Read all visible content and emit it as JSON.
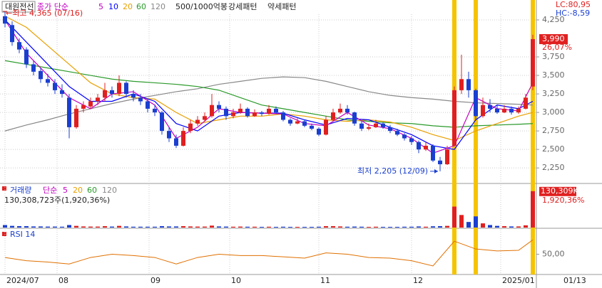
{
  "chart_data": [
    {
      "type": "candlestick",
      "title": "대원전선",
      "legend_prefix": "종가 단순",
      "patterns": [
        "500/1000억봉",
        "강세패턴",
        "약세패턴"
      ],
      "up_color": "#e02020",
      "down_color": "#1a3fd0",
      "candles": [
        [
          4300,
          4365,
          4150,
          4200
        ],
        [
          4180,
          4230,
          3900,
          3950
        ],
        [
          3950,
          4000,
          3800,
          3850
        ],
        [
          3850,
          3880,
          3600,
          3650
        ],
        [
          3650,
          3700,
          3500,
          3550
        ],
        [
          3560,
          3600,
          3400,
          3450
        ],
        [
          3450,
          3520,
          3350,
          3400
        ],
        [
          3400,
          3450,
          3250,
          3300
        ],
        [
          3300,
          3380,
          3200,
          3250
        ],
        [
          3200,
          3250,
          2650,
          2800
        ],
        [
          2800,
          3100,
          2780,
          3050
        ],
        [
          3050,
          3150,
          3000,
          3100
        ],
        [
          3080,
          3200,
          3050,
          3150
        ],
        [
          3150,
          3250,
          3100,
          3200
        ],
        [
          3200,
          3400,
          3150,
          3300
        ],
        [
          3300,
          3350,
          3200,
          3250
        ],
        [
          3250,
          3500,
          3220,
          3400
        ],
        [
          3400,
          3420,
          3200,
          3250
        ],
        [
          3250,
          3300,
          3150,
          3200
        ],
        [
          3200,
          3250,
          3100,
          3150
        ],
        [
          3150,
          3180,
          3000,
          3050
        ],
        [
          3050,
          3100,
          2950,
          3000
        ],
        [
          3000,
          3020,
          2700,
          2750
        ],
        [
          2750,
          2800,
          2600,
          2650
        ],
        [
          2650,
          2700,
          2520,
          2550
        ],
        [
          2550,
          2800,
          2540,
          2750
        ],
        [
          2750,
          2900,
          2720,
          2850
        ],
        [
          2850,
          2950,
          2820,
          2900
        ],
        [
          2900,
          3000,
          2880,
          2950
        ],
        [
          2950,
          3250,
          2930,
          3100
        ],
        [
          3100,
          3150,
          3000,
          3050
        ],
        [
          3050,
          3080,
          2900,
          2950
        ],
        [
          2950,
          3050,
          2920,
          3000
        ],
        [
          3000,
          3120,
          2980,
          3050
        ],
        [
          3050,
          3070,
          2930,
          2950
        ],
        [
          2950,
          3040,
          2940,
          3000
        ],
        [
          3000,
          3020,
          2950,
          2980
        ],
        [
          2980,
          3100,
          2970,
          3050
        ],
        [
          3050,
          3080,
          2980,
          3000
        ],
        [
          3000,
          3020,
          2880,
          2900
        ],
        [
          2900,
          2920,
          2820,
          2850
        ],
        [
          2850,
          2920,
          2840,
          2880
        ],
        [
          2880,
          2900,
          2800,
          2820
        ],
        [
          2820,
          2850,
          2760,
          2780
        ],
        [
          2780,
          2800,
          2680,
          2700
        ],
        [
          2700,
          2950,
          2690,
          2900
        ],
        [
          2900,
          3050,
          2880,
          3000
        ],
        [
          3000,
          3120,
          2980,
          3050
        ],
        [
          3050,
          3100,
          2970,
          3000
        ],
        [
          3000,
          3010,
          2820,
          2850
        ],
        [
          2850,
          2880,
          2750,
          2780
        ],
        [
          2780,
          2850,
          2760,
          2800
        ],
        [
          2800,
          2900,
          2790,
          2850
        ],
        [
          2850,
          2870,
          2780,
          2800
        ],
        [
          2800,
          2830,
          2720,
          2750
        ],
        [
          2750,
          2780,
          2680,
          2700
        ],
        [
          2700,
          2720,
          2620,
          2650
        ],
        [
          2650,
          2680,
          2560,
          2600
        ],
        [
          2600,
          2620,
          2450,
          2500
        ],
        [
          2500,
          2600,
          2480,
          2550
        ],
        [
          2550,
          2570,
          2330,
          2350
        ],
        [
          2350,
          2400,
          2205,
          2300
        ],
        [
          2300,
          2550,
          2290,
          2500
        ],
        [
          2550,
          3350,
          2540,
          3300
        ],
        [
          3300,
          3780,
          3250,
          3450
        ],
        [
          3450,
          3550,
          3200,
          3300
        ],
        [
          3300,
          3320,
          2900,
          2950
        ],
        [
          2950,
          3200,
          2930,
          3100
        ],
        [
          3100,
          3180,
          3000,
          3050
        ],
        [
          3050,
          3100,
          2980,
          3000
        ],
        [
          3000,
          3100,
          2990,
          3050
        ],
        [
          3050,
          3080,
          2970,
          3000
        ],
        [
          3000,
          3080,
          2980,
          3050
        ],
        [
          3050,
          3250,
          3040,
          3200
        ],
        [
          3350,
          4050,
          3300,
          3990
        ]
      ],
      "series": [
        {
          "name": "5",
          "color": "#c000c0",
          "x": [
            0,
            3,
            6,
            9,
            12,
            15,
            18,
            21,
            24,
            27,
            30,
            33,
            36,
            39,
            42,
            45,
            48,
            51,
            54,
            57,
            60,
            63,
            66,
            69,
            72,
            74
          ],
          "values": [
            4250,
            3800,
            3500,
            3200,
            3050,
            3250,
            3280,
            3100,
            2650,
            2800,
            3050,
            3000,
            2990,
            2980,
            2850,
            2820,
            3000,
            2830,
            2780,
            2650,
            2450,
            2550,
            3200,
            3050,
            3020,
            3400
          ]
        },
        {
          "name": "10",
          "color": "#0000ff",
          "x": [
            0,
            3,
            6,
            9,
            12,
            15,
            18,
            21,
            24,
            27,
            30,
            33,
            36,
            39,
            42,
            45,
            48,
            51,
            54,
            57,
            60,
            63,
            66,
            69,
            72,
            74
          ],
          "values": [
            4250,
            3950,
            3650,
            3350,
            3150,
            3150,
            3250,
            3150,
            2850,
            2750,
            2950,
            3000,
            2990,
            2990,
            2900,
            2830,
            2920,
            2900,
            2800,
            2700,
            2550,
            2500,
            2900,
            3100,
            3050,
            3150
          ]
        },
        {
          "name": "20",
          "color": "#e8a000",
          "x": [
            0,
            3,
            6,
            9,
            12,
            15,
            18,
            21,
            24,
            27,
            30,
            33,
            36,
            39,
            42,
            45,
            48,
            51,
            54,
            57,
            60,
            63,
            66,
            69,
            72,
            74
          ],
          "values": [
            4300,
            4150,
            3900,
            3650,
            3400,
            3250,
            3200,
            3180,
            3000,
            2850,
            2900,
            2950,
            2950,
            2980,
            2950,
            2900,
            2880,
            2900,
            2870,
            2800,
            2700,
            2620,
            2750,
            2850,
            2950,
            3000
          ]
        },
        {
          "name": "60",
          "color": "#2a9a2a",
          "x": [
            0,
            3,
            6,
            9,
            12,
            15,
            18,
            21,
            24,
            27,
            30,
            33,
            36,
            39,
            42,
            45,
            48,
            51,
            54,
            57,
            60,
            63,
            66,
            69,
            72,
            74
          ],
          "values": [
            3700,
            3650,
            3600,
            3550,
            3500,
            3450,
            3420,
            3400,
            3380,
            3350,
            3300,
            3200,
            3100,
            3050,
            3000,
            2950,
            2900,
            2880,
            2860,
            2850,
            2820,
            2800,
            2820,
            2830,
            2840,
            2850
          ]
        },
        {
          "name": "120",
          "color": "#888888",
          "x": [
            0,
            3,
            6,
            9,
            12,
            15,
            18,
            21,
            24,
            27,
            30,
            33,
            36,
            39,
            42,
            45,
            48,
            51,
            54,
            57,
            60,
            63,
            66,
            69,
            72,
            74
          ],
          "values": [
            2750,
            2830,
            2900,
            2980,
            3050,
            3120,
            3180,
            3230,
            3280,
            3320,
            3380,
            3420,
            3460,
            3480,
            3470,
            3420,
            3350,
            3280,
            3230,
            3200,
            3180,
            3150,
            3130,
            3120,
            3110,
            3100
          ]
        }
      ],
      "ylim": [
        2050,
        4365
      ],
      "yticks": [
        {
          "value": 4250,
          "label": "4,250"
        },
        {
          "value": 3750,
          "label": "3,750"
        },
        {
          "value": 3500,
          "label": "3,500"
        },
        {
          "value": 3250,
          "label": "3,250"
        },
        {
          "value": 3000,
          "label": "3,000"
        },
        {
          "value": 2750,
          "label": "2,750"
        },
        {
          "value": 2500,
          "label": "2,500"
        },
        {
          "value": 2250,
          "label": "2,250"
        }
      ],
      "current_price": {
        "value": 3990,
        "label": "3,990"
      },
      "change": {
        "value": 26.07,
        "label": "26,07%"
      },
      "lc": "LC:80,95",
      "hc": "HC:-8,59",
      "high": {
        "index": 0,
        "value": 4365,
        "label": "←최고 4,365 (07/16)"
      },
      "low": {
        "index": 61,
        "value": 2205,
        "label": "최저 2,205 (12/09)"
      },
      "highlights": [
        63,
        66,
        74
      ],
      "highlight_color": "#f5c400",
      "xticks": [
        {
          "value": 0,
          "label": "2024/07"
        },
        {
          "value": 7.3,
          "label": "08"
        },
        {
          "value": 20.2,
          "label": "09"
        },
        {
          "value": 31.5,
          "label": "10"
        },
        {
          "value": 44,
          "label": "11"
        },
        {
          "value": 57,
          "label": "12"
        },
        {
          "value": 69.5,
          "label": "2025/01"
        }
      ],
      "x_end_label": "01/13",
      "grid": true
    },
    {
      "type": "bar",
      "title": "거래량",
      "legend_prefix": "단순",
      "legend_names": [
        {
          "name": "5",
          "color": "#c000c0"
        },
        {
          "name": "20",
          "color": "#e8a000"
        },
        {
          "name": "60",
          "color": "#2a9a2a"
        },
        {
          "name": "120",
          "color": "#888888"
        }
      ],
      "summary": "130,308,723주(1,920,36%)",
      "values": [
        9000,
        6000,
        5000,
        5000,
        4000,
        4000,
        3500,
        3500,
        3000,
        9000,
        6000,
        4000,
        3500,
        3500,
        5000,
        3500,
        6000,
        4000,
        3000,
        3000,
        3000,
        3000,
        5000,
        4000,
        4000,
        5000,
        4000,
        3500,
        3500,
        7000,
        4000,
        3500,
        3000,
        3500,
        3000,
        3000,
        2500,
        3000,
        2500,
        3000,
        2500,
        2500,
        2500,
        2500,
        3000,
        5000,
        5000,
        4000,
        3000,
        3500,
        3000,
        2500,
        3000,
        2500,
        2500,
        2500,
        3000,
        3000,
        4000,
        3000,
        4500,
        5000,
        6000,
        75000,
        45000,
        20000,
        40000,
        15000,
        9000,
        6000,
        5000,
        4000,
        4000,
        8000,
        130309
      ],
      "ylim": [
        0,
        140000
      ],
      "current_volume": {
        "value": 130309,
        "label": "130,309K"
      },
      "volume_change": {
        "value": 1920.36,
        "label": "1,920,36%"
      }
    },
    {
      "type": "line",
      "title": "RSI 14",
      "color": "#e07000",
      "x": [
        0,
        3,
        6,
        9,
        12,
        15,
        18,
        21,
        24,
        27,
        30,
        33,
        36,
        39,
        42,
        45,
        48,
        51,
        54,
        57,
        60,
        63,
        66,
        69,
        72,
        74
      ],
      "values": [
        45,
        40,
        38,
        35,
        45,
        50,
        48,
        45,
        35,
        45,
        50,
        48,
        48,
        46,
        44,
        52,
        50,
        45,
        44,
        40,
        32,
        70,
        58,
        55,
        56,
        72
      ],
      "ylim": [
        20,
        80
      ],
      "yticks": [
        {
          "value": 50,
          "label": "50,00"
        }
      ]
    }
  ]
}
